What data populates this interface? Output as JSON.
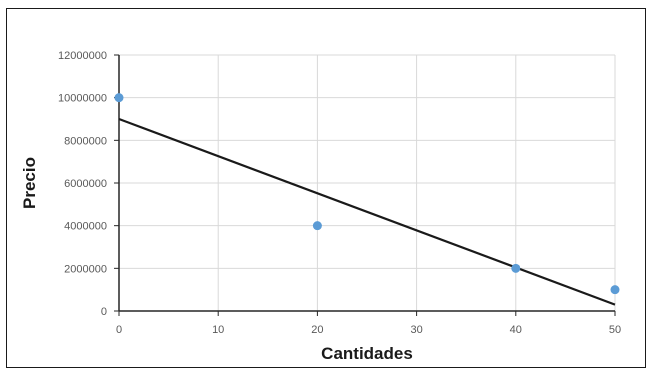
{
  "chart_data": {
    "type": "scatter",
    "title": "",
    "xlabel": "Cantidades",
    "ylabel": "Precio",
    "xlim": [
      0,
      50
    ],
    "ylim": [
      0,
      12000000
    ],
    "x_ticks": [
      0,
      10,
      20,
      30,
      40,
      50
    ],
    "y_ticks": [
      0,
      2000000,
      4000000,
      6000000,
      8000000,
      10000000,
      12000000
    ],
    "grid": true,
    "legend": "none",
    "series": [
      {
        "type": "scatter",
        "color": "#5b9bd5",
        "points": [
          {
            "x": 0,
            "y": 10000000
          },
          {
            "x": 20,
            "y": 4000000
          },
          {
            "x": 40,
            "y": 2000000
          },
          {
            "x": 50,
            "y": 1000000
          }
        ]
      }
    ],
    "trendline": {
      "type": "linear",
      "color": "#1a1a1a",
      "points": [
        {
          "x": 0,
          "y": 9000000
        },
        {
          "x": 50,
          "y": 300000
        }
      ]
    }
  }
}
